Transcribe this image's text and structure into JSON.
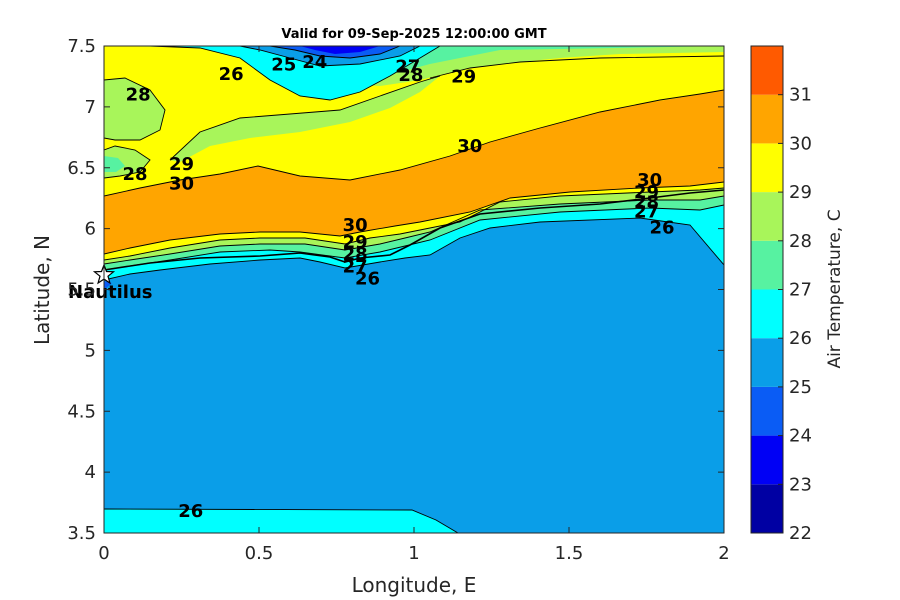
{
  "chart_data": {
    "type": "contour",
    "title": "Valid for 09-Sep-2025 12:00:00 GMT",
    "xlabel": "Longitude, E",
    "ylabel": "Latitude, N",
    "xlim": [
      0,
      2
    ],
    "ylim": [
      3.5,
      7.5
    ],
    "xticks": [
      0,
      0.5,
      1,
      1.5,
      2
    ],
    "xtick_labels": [
      "0",
      "0.5",
      "1",
      "1.5",
      "2"
    ],
    "yticks": [
      3.5,
      4,
      4.5,
      5,
      5.5,
      6,
      6.5,
      7,
      7.5
    ],
    "ytick_labels": [
      "3.5",
      "4",
      "4.5",
      "5",
      "5.5",
      "6",
      "6.5",
      "7",
      "7.5"
    ],
    "colorbar": {
      "label": "Air Temperature, C",
      "ticks": [
        22,
        23,
        24,
        25,
        26,
        27,
        28,
        29,
        30,
        31
      ],
      "tick_labels": [
        "22",
        "23",
        "24",
        "25",
        "26",
        "27",
        "28",
        "29",
        "30",
        "31"
      ],
      "levels": [
        {
          "min": 22,
          "max": 23,
          "color": "#0000a3"
        },
        {
          "min": 23,
          "max": 24,
          "color": "#0000f5"
        },
        {
          "min": 24,
          "max": 25,
          "color": "#0a5cf5"
        },
        {
          "min": 25,
          "max": 26,
          "color": "#0a9ee8"
        },
        {
          "min": 26,
          "max": 27,
          "color": "#00ffff"
        },
        {
          "min": 27,
          "max": 28,
          "color": "#57f2a1"
        },
        {
          "min": 28,
          "max": 29,
          "color": "#a8f55a"
        },
        {
          "min": 29,
          "max": 30,
          "color": "#ffff00"
        },
        {
          "min": 30,
          "max": 31,
          "color": "#ffa500"
        },
        {
          "min": 31,
          "max": 32,
          "color": "#ff5a00"
        }
      ]
    },
    "contour_labels": [
      {
        "text": "24",
        "x": 0.68,
        "y": 7.37
      },
      {
        "text": "25",
        "x": 0.58,
        "y": 7.35
      },
      {
        "text": "26",
        "x": 0.41,
        "y": 7.27
      },
      {
        "text": "27",
        "x": 0.98,
        "y": 7.33
      },
      {
        "text": "28",
        "x": 0.99,
        "y": 7.26
      },
      {
        "text": "29",
        "x": 1.16,
        "y": 7.25
      },
      {
        "text": "28",
        "x": 0.11,
        "y": 7.1
      },
      {
        "text": "28",
        "x": 0.1,
        "y": 6.45
      },
      {
        "text": "29",
        "x": 0.25,
        "y": 6.53
      },
      {
        "text": "30",
        "x": 0.25,
        "y": 6.37
      },
      {
        "text": "30",
        "x": 1.18,
        "y": 6.68
      },
      {
        "text": "30",
        "x": 0.81,
        "y": 6.03
      },
      {
        "text": "29",
        "x": 0.81,
        "y": 5.89
      },
      {
        "text": "28",
        "x": 0.81,
        "y": 5.79
      },
      {
        "text": "27",
        "x": 0.81,
        "y": 5.69
      },
      {
        "text": "26",
        "x": 0.85,
        "y": 5.59
      },
      {
        "text": "30",
        "x": 1.76,
        "y": 6.4
      },
      {
        "text": "29",
        "x": 1.75,
        "y": 6.3
      },
      {
        "text": "28",
        "x": 1.75,
        "y": 6.22
      },
      {
        "text": "27",
        "x": 1.75,
        "y": 6.14
      },
      {
        "text": "26",
        "x": 1.8,
        "y": 6.01
      },
      {
        "text": "26",
        "x": 0.28,
        "y": 3.68
      }
    ],
    "station": {
      "name": "Nautilus",
      "x": 0.0,
      "y": 5.62
    },
    "grid": false
  }
}
